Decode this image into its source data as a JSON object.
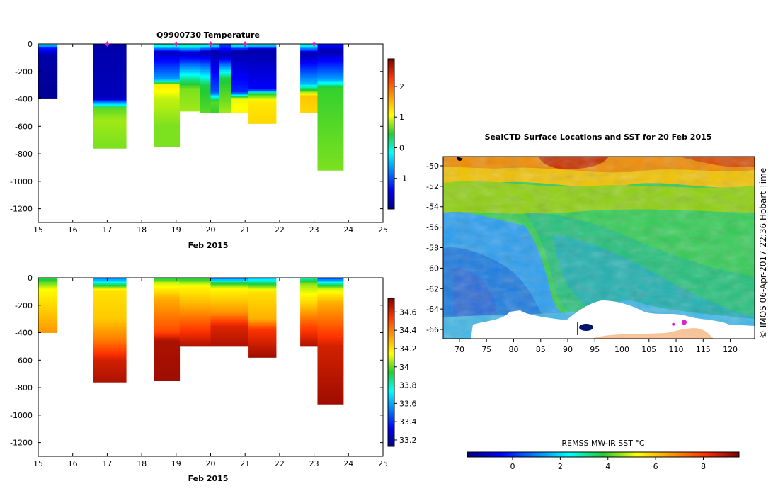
{
  "chart_data": [
    {
      "type": "heatmap",
      "title": "Q9900730  Temperature",
      "xlabel": "Feb 2015",
      "ylabel": "",
      "x_ticks": [
        "15",
        "16",
        "17",
        "18",
        "19",
        "20",
        "21",
        "22",
        "23",
        "24",
        "25"
      ],
      "y_ticks": [
        "0",
        "-200",
        "-400",
        "-600",
        "-800",
        "-1000",
        "-1200"
      ],
      "xlim": [
        15,
        25
      ],
      "ylim": [
        -1300,
        0
      ],
      "colorbar": {
        "min": -2.0,
        "max": 2.9,
        "ticks": [
          "2",
          "1",
          "0",
          "-1"
        ]
      },
      "profile_markers_day": [
        17,
        19,
        20,
        21,
        23
      ],
      "profiles": [
        {
          "t0": 15.0,
          "t1": 15.55,
          "depth": 400,
          "layers": [
            {
              "d": 0,
              "v": 0.2
            },
            {
              "d": 25,
              "v": -1.2
            },
            {
              "d": 80,
              "v": -1.8
            },
            {
              "d": 400,
              "v": -1.9
            }
          ]
        },
        {
          "t0": 16.6,
          "t1": 17.55,
          "depth": 760,
          "layers": [
            {
              "d": 0,
              "v": -1.8
            },
            {
              "d": 400,
              "v": -1.7
            },
            {
              "d": 420,
              "v": -0.9
            },
            {
              "d": 445,
              "v": -0.2
            },
            {
              "d": 465,
              "v": 0.6
            },
            {
              "d": 560,
              "v": 0.8
            },
            {
              "d": 740,
              "v": 0.7
            }
          ]
        },
        {
          "t0": 18.35,
          "t1": 19.1,
          "depth": 750,
          "layers": [
            {
              "d": 0,
              "v": 0.4
            },
            {
              "d": 60,
              "v": -1.7
            },
            {
              "d": 260,
              "v": -0.6
            },
            {
              "d": 300,
              "v": 1.2
            },
            {
              "d": 400,
              "v": 0.9
            },
            {
              "d": 600,
              "v": 0.7
            }
          ]
        },
        {
          "t0": 19.1,
          "t1": 19.7,
          "depth": 490,
          "layers": [
            {
              "d": 0,
              "v": 0.4
            },
            {
              "d": 70,
              "v": -1.7
            },
            {
              "d": 260,
              "v": 0.2
            },
            {
              "d": 330,
              "v": 0.7
            },
            {
              "d": 490,
              "v": 0.8
            }
          ]
        },
        {
          "t0": 19.7,
          "t1": 20.0,
          "depth": 500,
          "layers": [
            {
              "d": 0,
              "v": 0.3
            },
            {
              "d": 60,
              "v": -1.8
            },
            {
              "d": 300,
              "v": 0.4
            },
            {
              "d": 500,
              "v": 0.6
            }
          ]
        },
        {
          "t0": 20.0,
          "t1": 20.25,
          "depth": 500,
          "layers": [
            {
              "d": 0,
              "v": 0.2
            },
            {
              "d": 50,
              "v": -1.8
            },
            {
              "d": 350,
              "v": -1.0
            },
            {
              "d": 420,
              "v": 0.6
            },
            {
              "d": 500,
              "v": 0.5
            }
          ]
        },
        {
          "t0": 20.25,
          "t1": 20.6,
          "depth": 500,
          "layers": [
            {
              "d": 0,
              "v": -1.0
            },
            {
              "d": 80,
              "v": -1.8
            },
            {
              "d": 250,
              "v": 0.4
            },
            {
              "d": 500,
              "v": 0.8
            }
          ]
        },
        {
          "t0": 20.6,
          "t1": 21.1,
          "depth": 500,
          "layers": [
            {
              "d": 0,
              "v": 0.3
            },
            {
              "d": 50,
              "v": -1.8
            },
            {
              "d": 350,
              "v": -1.2
            },
            {
              "d": 400,
              "v": 1.0
            },
            {
              "d": 500,
              "v": 1.1
            }
          ]
        },
        {
          "t0": 21.1,
          "t1": 21.9,
          "depth": 580,
          "layers": [
            {
              "d": 0,
              "v": 0.3
            },
            {
              "d": 40,
              "v": -1.8
            },
            {
              "d": 330,
              "v": -1.4
            },
            {
              "d": 360,
              "v": 0.4
            },
            {
              "d": 420,
              "v": 1.2
            },
            {
              "d": 580,
              "v": 1.3
            }
          ]
        },
        {
          "t0": 22.6,
          "t1": 23.1,
          "depth": 500,
          "layers": [
            {
              "d": 0,
              "v": 0.2
            },
            {
              "d": 70,
              "v": -1.8
            },
            {
              "d": 290,
              "v": -0.5
            },
            {
              "d": 380,
              "v": 1.4
            },
            {
              "d": 500,
              "v": 1.3
            }
          ]
        },
        {
          "t0": 23.1,
          "t1": 23.85,
          "depth": 920,
          "layers": [
            {
              "d": 0,
              "v": -1.2
            },
            {
              "d": 50,
              "v": -1.8
            },
            {
              "d": 260,
              "v": -0.6
            },
            {
              "d": 320,
              "v": 0.5
            },
            {
              "d": 920,
              "v": 0.7
            }
          ]
        }
      ]
    },
    {
      "type": "heatmap",
      "title": "",
      "xlabel": "Feb 2015",
      "ylabel": "",
      "x_ticks": [
        "15",
        "16",
        "17",
        "18",
        "19",
        "20",
        "21",
        "22",
        "23",
        "24",
        "25"
      ],
      "y_ticks": [
        "0",
        "-200",
        "-400",
        "-600",
        "-800",
        "-1000",
        "-1200"
      ],
      "xlim": [
        15,
        25
      ],
      "ylim": [
        -1300,
        0
      ],
      "colorbar": {
        "min": 33.13,
        "max": 34.75,
        "ticks": [
          "34.6",
          "34.4",
          "34.2",
          "34",
          "33.8",
          "33.6",
          "33.4",
          "33.2"
        ]
      },
      "profiles": [
        {
          "t0": 15.0,
          "t1": 15.55,
          "depth": 400,
          "layers": [
            {
              "d": 0,
              "v": 33.9
            },
            {
              "d": 90,
              "v": 34.15
            },
            {
              "d": 250,
              "v": 34.25
            },
            {
              "d": 400,
              "v": 34.35
            }
          ]
        },
        {
          "t0": 16.6,
          "t1": 17.55,
          "depth": 760,
          "layers": [
            {
              "d": 0,
              "v": 33.5
            },
            {
              "d": 40,
              "v": 33.8
            },
            {
              "d": 90,
              "v": 34.2
            },
            {
              "d": 300,
              "v": 34.25
            },
            {
              "d": 450,
              "v": 34.4
            },
            {
              "d": 600,
              "v": 34.62
            },
            {
              "d": 760,
              "v": 34.68
            }
          ]
        },
        {
          "t0": 18.35,
          "t1": 19.1,
          "depth": 750,
          "layers": [
            {
              "d": 0,
              "v": 33.9
            },
            {
              "d": 40,
              "v": 34.1
            },
            {
              "d": 150,
              "v": 34.3
            },
            {
              "d": 390,
              "v": 34.5
            },
            {
              "d": 460,
              "v": 34.68
            },
            {
              "d": 750,
              "v": 34.7
            }
          ]
        },
        {
          "t0": 19.1,
          "t1": 20.0,
          "depth": 500,
          "layers": [
            {
              "d": 0,
              "v": 33.9
            },
            {
              "d": 60,
              "v": 34.15
            },
            {
              "d": 200,
              "v": 34.3
            },
            {
              "d": 350,
              "v": 34.5
            },
            {
              "d": 450,
              "v": 34.62
            },
            {
              "d": 500,
              "v": 34.68
            }
          ]
        },
        {
          "t0": 20.0,
          "t1": 21.1,
          "depth": 500,
          "layers": [
            {
              "d": 0,
              "v": 33.45
            },
            {
              "d": 35,
              "v": 33.9
            },
            {
              "d": 80,
              "v": 34.15
            },
            {
              "d": 250,
              "v": 34.35
            },
            {
              "d": 350,
              "v": 34.6
            },
            {
              "d": 500,
              "v": 34.68
            }
          ]
        },
        {
          "t0": 21.1,
          "t1": 21.9,
          "depth": 580,
          "layers": [
            {
              "d": 0,
              "v": 33.6
            },
            {
              "d": 40,
              "v": 33.9
            },
            {
              "d": 100,
              "v": 34.2
            },
            {
              "d": 300,
              "v": 34.3
            },
            {
              "d": 380,
              "v": 34.55
            },
            {
              "d": 580,
              "v": 34.7
            }
          ]
        },
        {
          "t0": 22.6,
          "t1": 23.1,
          "depth": 500,
          "layers": [
            {
              "d": 0,
              "v": 33.8
            },
            {
              "d": 50,
              "v": 34.05
            },
            {
              "d": 200,
              "v": 34.25
            },
            {
              "d": 350,
              "v": 34.5
            },
            {
              "d": 500,
              "v": 34.68
            }
          ]
        },
        {
          "t0": 23.1,
          "t1": 23.85,
          "depth": 920,
          "layers": [
            {
              "d": 0,
              "v": 33.4
            },
            {
              "d": 40,
              "v": 33.8
            },
            {
              "d": 80,
              "v": 34.1
            },
            {
              "d": 180,
              "v": 34.3
            },
            {
              "d": 380,
              "v": 34.5
            },
            {
              "d": 500,
              "v": 34.62
            },
            {
              "d": 920,
              "v": 34.7
            }
          ]
        }
      ]
    },
    {
      "type": "heatmap",
      "title": "SealCTD Surface Locations and SST for 20 Feb 2015",
      "xlabel": "",
      "ylabel": "",
      "x_ticks": [
        "70",
        "75",
        "80",
        "85",
        "90",
        "95",
        "100",
        "105",
        "110",
        "115",
        "120"
      ],
      "y_ticks": [
        "-50",
        "-52",
        "-54",
        "-56",
        "-58",
        "-60",
        "-62",
        "-64",
        "-66"
      ],
      "xlim": [
        67,
        124.5
      ],
      "ylim": [
        -66.9,
        -49.1
      ],
      "surface_locations": [
        {
          "lon": 111.5,
          "lat": -65.3
        },
        {
          "lon": 109.5,
          "lat": -65.5
        }
      ],
      "credit": "© IMOS 06-Apr-2017 22:36 Hobart Time",
      "colorbar": {
        "label": "REMSS MW-IR SST °C",
        "min": -1.9,
        "max": 9.5,
        "ticks": [
          "0",
          "2",
          "4",
          "6",
          "8"
        ]
      }
    }
  ]
}
